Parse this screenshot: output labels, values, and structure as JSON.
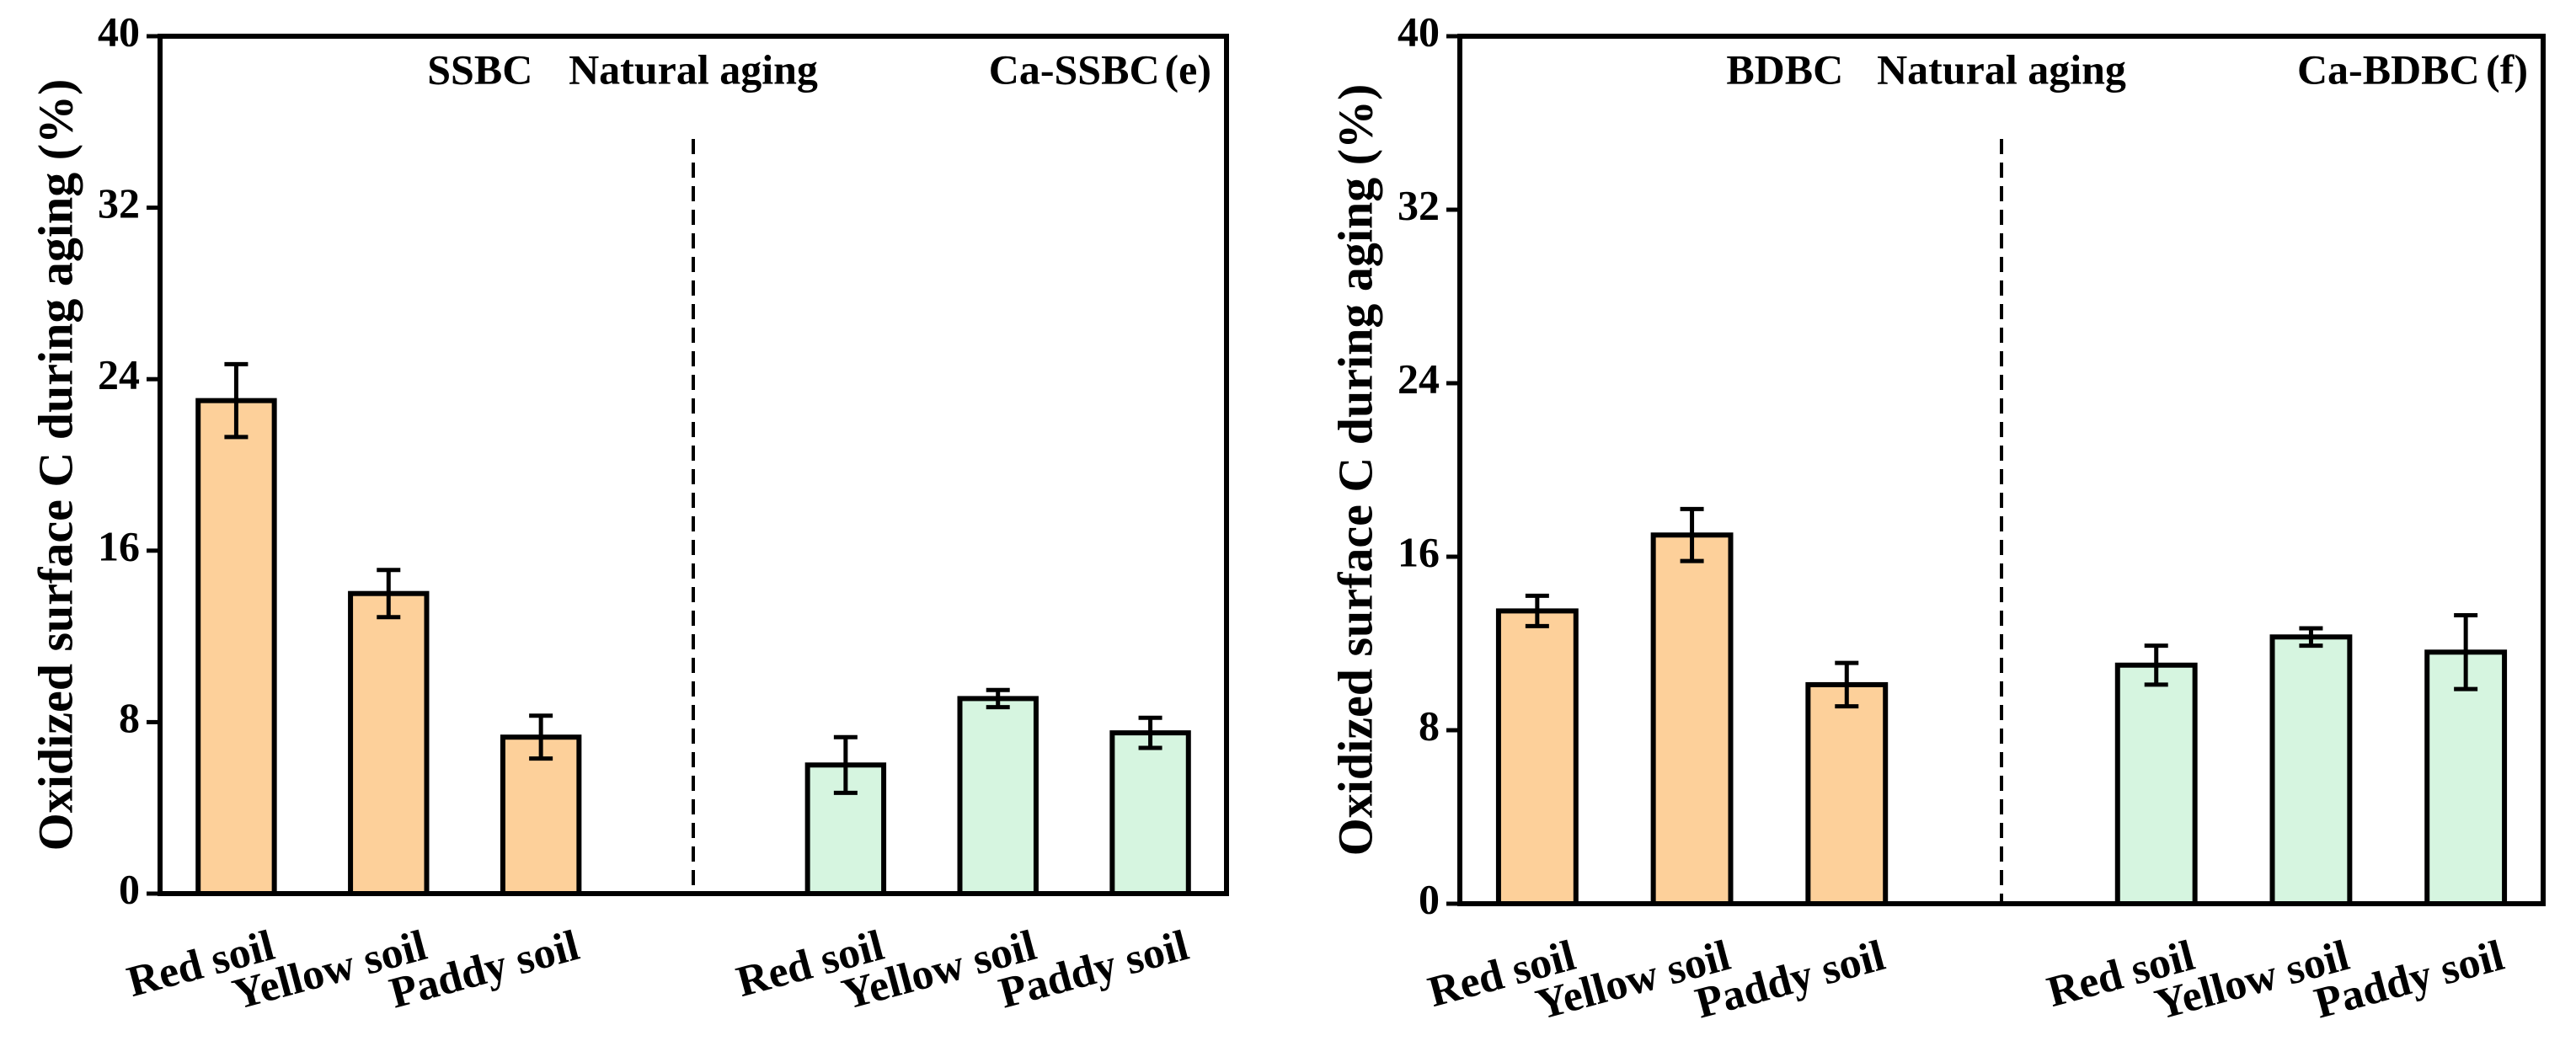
{
  "chart_data": [
    {
      "type": "bar",
      "panel": "(e)",
      "annotation": "Natural aging",
      "ylabel": "Oxidized surface C during aging (%)",
      "categories": [
        "Red soil",
        "Yellow soil",
        "Paddy soil",
        null,
        "Red soil",
        "Yellow soil",
        "Paddy soil"
      ],
      "series": [
        {
          "name": "SSBC",
          "color": "#fdd09a",
          "values": [
            23.0,
            14.0,
            7.3,
            null,
            null,
            null,
            null
          ],
          "errors": [
            1.7,
            1.1,
            1.0,
            null,
            null,
            null,
            null
          ]
        },
        {
          "name": "Ca-SSBC",
          "color": "#d6f5e0",
          "values": [
            null,
            null,
            null,
            null,
            6.0,
            9.1,
            7.5
          ],
          "errors": [
            null,
            null,
            null,
            null,
            1.3,
            0.4,
            0.7
          ]
        }
      ],
      "ylim": [
        0,
        40
      ],
      "yticks": [
        0,
        8,
        16,
        24,
        32,
        40
      ]
    },
    {
      "type": "bar",
      "panel": "(f)",
      "annotation": "Natural aging",
      "ylabel": "Oxidized surface C during aging (%)",
      "categories": [
        "Red soil",
        "Yellow soil",
        "Paddy soil",
        null,
        "Red soil",
        "Yellow soil",
        "Paddy soil"
      ],
      "series": [
        {
          "name": "BDBC",
          "color": "#fdd09a",
          "values": [
            13.5,
            17.0,
            10.1,
            null,
            null,
            null,
            null
          ],
          "errors": [
            0.7,
            1.2,
            1.0,
            null,
            null,
            null,
            null
          ]
        },
        {
          "name": "Ca-BDBC",
          "color": "#d6f5e0",
          "values": [
            null,
            null,
            null,
            null,
            11.0,
            12.3,
            11.6
          ],
          "errors": [
            null,
            null,
            null,
            null,
            0.9,
            0.4,
            1.7
          ]
        }
      ],
      "ylim": [
        0,
        40
      ],
      "yticks": [
        0,
        8,
        16,
        24,
        32,
        40
      ]
    }
  ]
}
